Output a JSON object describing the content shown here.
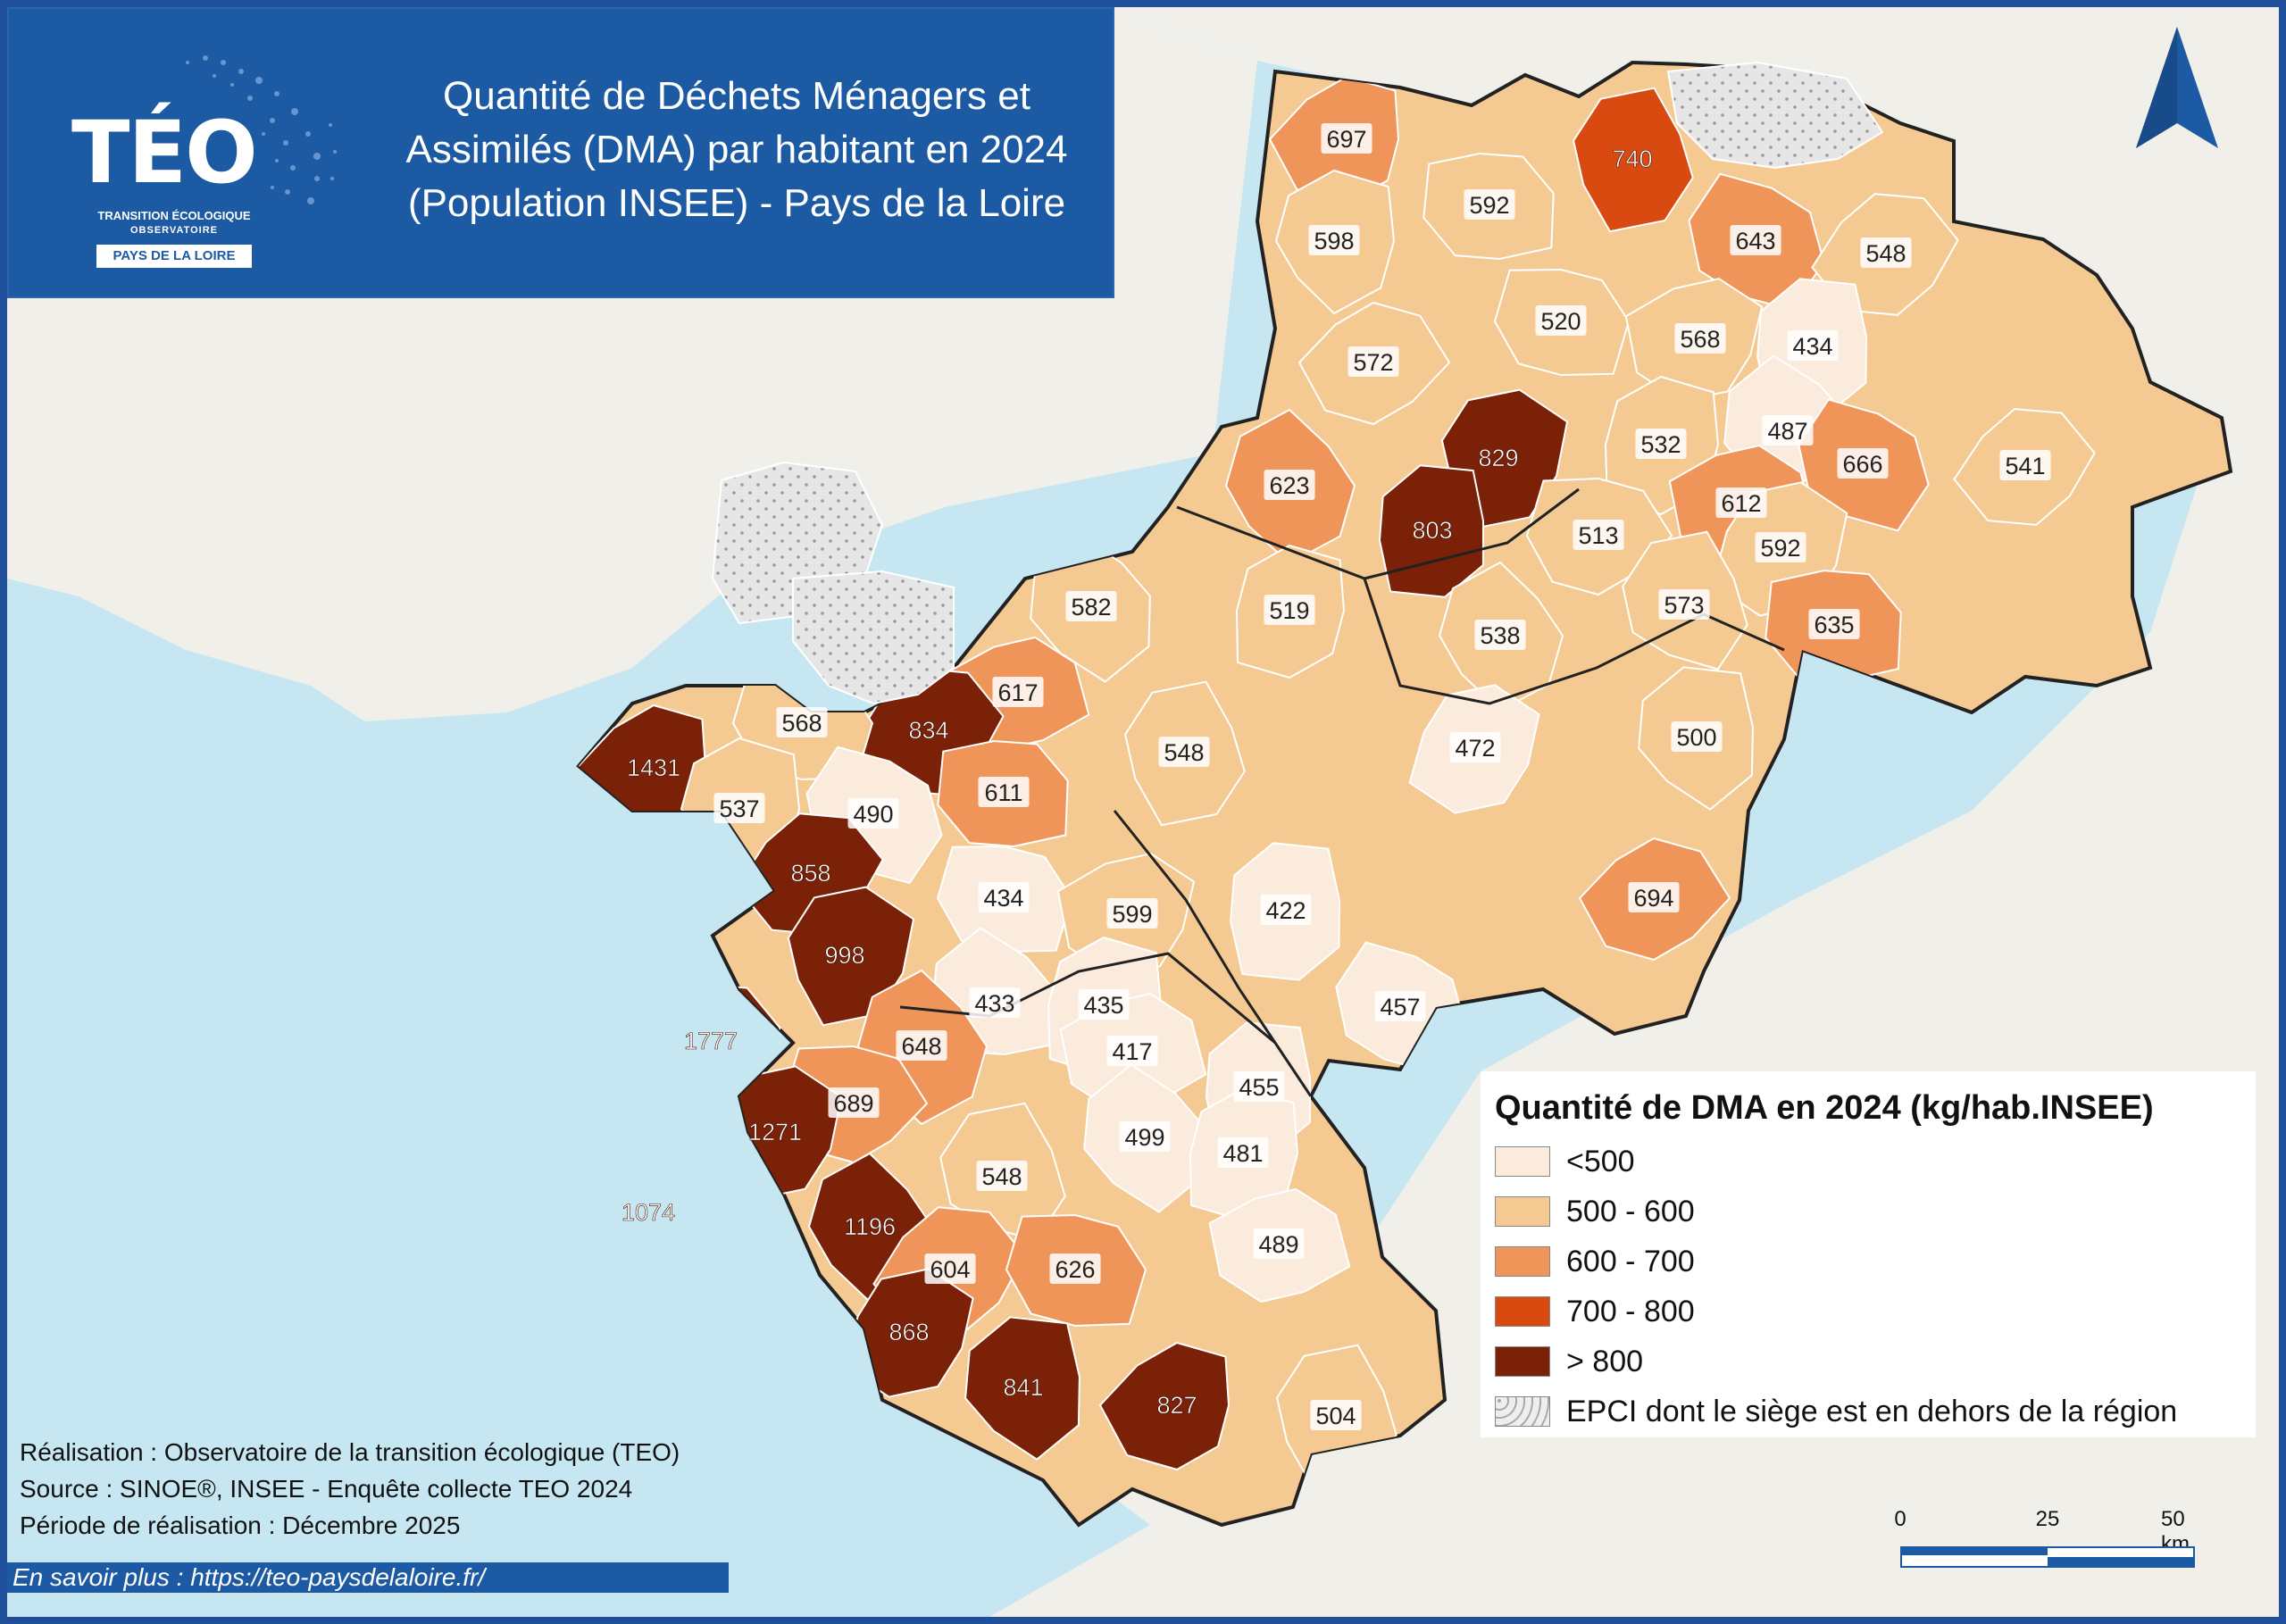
{
  "header": {
    "logo": "TÉO",
    "logo_sub1": "TRANSITION ÉCOLOGIQUE",
    "logo_sub2": "OBSERVATOIRE",
    "logo_badge": "PAYS DE LA LOIRE",
    "title_line1": "Quantité de Déchets Ménagers et",
    "title_line2": "Assimilés (DMA) par habitant en 2024",
    "title_line3": "(Population INSEE) - Pays de la Loire"
  },
  "colors": {
    "lt500": "#faebdd",
    "500_600": "#f5c992",
    "600_700": "#f0955a",
    "700_800": "#d94a10",
    "gt800": "#7a2108",
    "outside": "#e4e4e4",
    "sea": "#c6e7f1",
    "land": "#f1efe9"
  },
  "legend": {
    "title": "Quantité de DMA en 2024 (kg/hab.INSEE)",
    "items": [
      {
        "label": "<500",
        "class": "lt500"
      },
      {
        "label": "500 - 600",
        "class": "500_600"
      },
      {
        "label": "600 - 700",
        "class": "600_700"
      },
      {
        "label": "700 - 800",
        "class": "700_800"
      },
      {
        "label": "> 800",
        "class": "gt800"
      },
      {
        "label": "EPCI dont le siège est en dehors de la région",
        "class": "outside"
      }
    ]
  },
  "epci_values": [
    {
      "value": "697",
      "class": "600_700"
    },
    {
      "value": "740",
      "class": "700_800"
    },
    {
      "value": "592",
      "class": "500_600"
    },
    {
      "value": "598",
      "class": "500_600"
    },
    {
      "value": "643",
      "class": "600_700"
    },
    {
      "value": "548",
      "class": "500_600"
    },
    {
      "value": "520",
      "class": "500_600"
    },
    {
      "value": "568",
      "class": "500_600"
    },
    {
      "value": "434",
      "class": "lt500"
    },
    {
      "value": "572",
      "class": "500_600"
    },
    {
      "value": "829",
      "class": "gt800"
    },
    {
      "value": "487",
      "class": "lt500"
    },
    {
      "value": "532",
      "class": "500_600"
    },
    {
      "value": "666",
      "class": "600_700"
    },
    {
      "value": "541",
      "class": "500_600"
    },
    {
      "value": "623",
      "class": "600_700"
    },
    {
      "value": "612",
      "class": "600_700"
    },
    {
      "value": "803",
      "class": "gt800"
    },
    {
      "value": "513",
      "class": "500_600"
    },
    {
      "value": "592",
      "class": "500_600"
    },
    {
      "value": "582",
      "class": "500_600"
    },
    {
      "value": "519",
      "class": "500_600"
    },
    {
      "value": "573",
      "class": "500_600"
    },
    {
      "value": "635",
      "class": "600_700"
    },
    {
      "value": "538",
      "class": "500_600"
    },
    {
      "value": "617",
      "class": "600_700"
    },
    {
      "value": "834",
      "class": "gt800"
    },
    {
      "value": "568",
      "class": "500_600"
    },
    {
      "value": "472",
      "class": "lt500"
    },
    {
      "value": "500",
      "class": "500_600"
    },
    {
      "value": "1431",
      "class": "gt800"
    },
    {
      "value": "548",
      "class": "500_600"
    },
    {
      "value": "611",
      "class": "600_700"
    },
    {
      "value": "537",
      "class": "500_600"
    },
    {
      "value": "490",
      "class": "lt500"
    },
    {
      "value": "858",
      "class": "gt800"
    },
    {
      "value": "434",
      "class": "lt500"
    },
    {
      "value": "599",
      "class": "500_600"
    },
    {
      "value": "422",
      "class": "lt500"
    },
    {
      "value": "694",
      "class": "600_700"
    },
    {
      "value": "998",
      "class": "gt800"
    },
    {
      "value": "433",
      "class": "lt500"
    },
    {
      "value": "435",
      "class": "lt500"
    },
    {
      "value": "457",
      "class": "lt500"
    },
    {
      "value": "1777",
      "class": "gt800"
    },
    {
      "value": "648",
      "class": "600_700"
    },
    {
      "value": "417",
      "class": "lt500"
    },
    {
      "value": "455",
      "class": "lt500"
    },
    {
      "value": "689",
      "class": "600_700"
    },
    {
      "value": "1271",
      "class": "gt800"
    },
    {
      "value": "499",
      "class": "lt500"
    },
    {
      "value": "481",
      "class": "lt500"
    },
    {
      "value": "548",
      "class": "500_600"
    },
    {
      "value": "1074",
      "class": "gt800"
    },
    {
      "value": "1196",
      "class": "gt800"
    },
    {
      "value": "489",
      "class": "lt500"
    },
    {
      "value": "604",
      "class": "600_700"
    },
    {
      "value": "626",
      "class": "600_700"
    },
    {
      "value": "868",
      "class": "gt800"
    },
    {
      "value": "841",
      "class": "gt800"
    },
    {
      "value": "827",
      "class": "gt800"
    },
    {
      "value": "504",
      "class": "500_600"
    }
  ],
  "credits": {
    "line1": "Réalisation : Observatoire de la transition écologique (TEO)",
    "line2": "Source : SINOE®, INSEE - Enquête collecte TEO 2024",
    "line3": "Période de réalisation : Décembre 2025"
  },
  "link": "En savoir plus : https://teo-paysdelaloire.fr/",
  "scale": {
    "labels": [
      "0",
      "25",
      "50 km"
    ]
  },
  "north_label": ""
}
